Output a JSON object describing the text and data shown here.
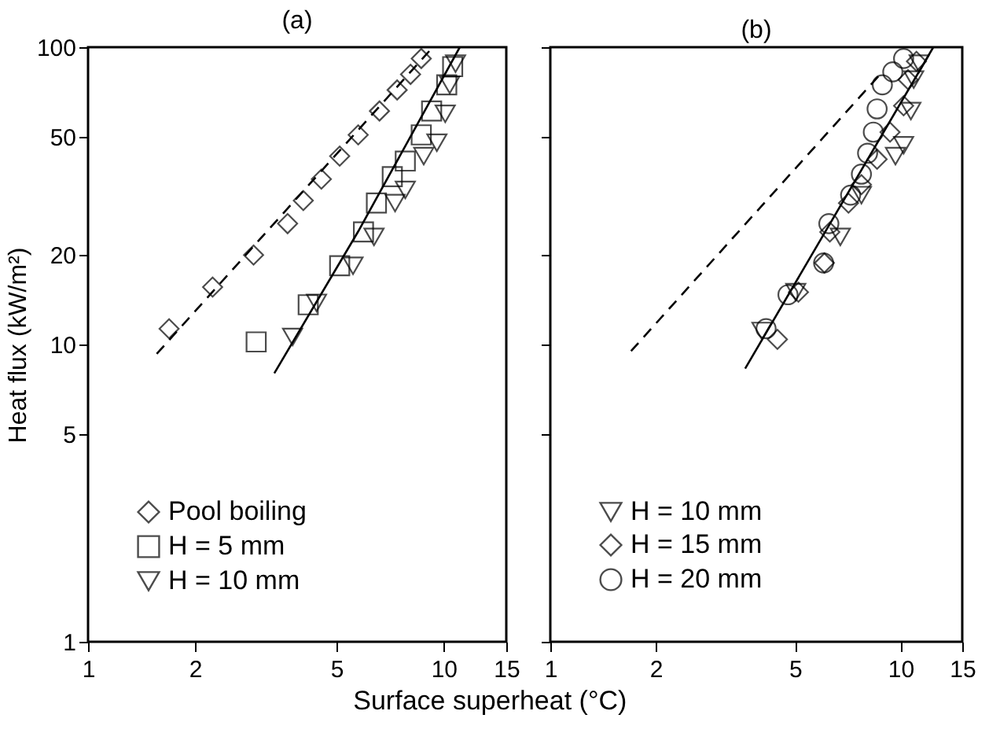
{
  "chart_data": [
    {
      "type": "scatter",
      "title": "(a)",
      "xlabel": "Surface superheat (°C)",
      "ylabel": "Heat flux (kW/m²)",
      "log": "xy",
      "grid": false,
      "legend": "bottom",
      "xlim": [
        1,
        15
      ],
      "xticks": [
        1,
        2,
        5,
        10,
        15
      ],
      "ylim": [
        1,
        100
      ],
      "yticks": [
        1,
        5,
        10,
        20,
        50,
        100
      ],
      "series": [
        {
          "name": "Pool boiling",
          "marker": "diamond",
          "color": "#000000",
          "x": [
            1.69,
            2.24,
            2.92,
            3.64,
            4.03,
            4.53,
            5.1,
            5.75,
            6.6,
            7.4,
            8.07,
            8.65
          ],
          "values": [
            11.3,
            15.6,
            20,
            25.5,
            30.5,
            36,
            43,
            50.7,
            61,
            71.8,
            81,
            91.6
          ]
        },
        {
          "name": "H = 5 mm",
          "marker": "square",
          "color": "#000000",
          "x": [
            2.97,
            4.16,
            5.1,
            5.95,
            6.47,
            7.17,
            7.8,
            8.65,
            9.25,
            10.2,
            10.6
          ],
          "values": [
            10.2,
            13.6,
            18.4,
            23.9,
            29.9,
            36.7,
            41.4,
            50.7,
            61,
            74.7,
            86
          ]
        },
        {
          "name": "H = 10 mm",
          "marker": "triangle",
          "color": "#000000",
          "x": [
            3.76,
            4.39,
            5.56,
            6.37,
            7.3,
            7.8,
            8.79,
            9.57,
            10.1,
            10.4,
            10.8
          ],
          "values": [
            10.6,
            13.8,
            18.4,
            23,
            29.9,
            33.1,
            43,
            47.7,
            59.7,
            74.7,
            88
          ]
        },
        {
          "type": "line",
          "line_style": "dashed",
          "color": "#000000",
          "x": [
            1.56,
            9.25
          ],
          "values": [
            9.3,
            99
          ]
        },
        {
          "type": "line",
          "line_style": "solid",
          "color": "#000000",
          "x": [
            3.34,
            5.75,
            11.1
          ],
          "values": [
            8.0,
            24,
            100
          ]
        }
      ]
    },
    {
      "type": "scatter",
      "title": "(b)",
      "log": "xy",
      "grid": false,
      "legend": "bottom",
      "tick_labels": "x",
      "xlim": [
        1,
        15
      ],
      "xticks": [
        1,
        2,
        5,
        10,
        15
      ],
      "ylim": [
        1,
        100
      ],
      "yticks": [
        1,
        5,
        10,
        20,
        50,
        100
      ],
      "series": [
        {
          "name": "H = 10 mm",
          "marker": "triangle",
          "color": "#000000",
          "x": [
            4.02,
            5.02,
            6.73,
            7.73,
            9.67,
            10.2,
            10.7,
            10.9,
            11.3
          ],
          "values": [
            11.1,
            15,
            23,
            31.8,
            43,
            46.8,
            61,
            77.8,
            88
          ]
        },
        {
          "name": "H = 15 mm",
          "marker": "diamond",
          "color": "#000000",
          "x": [
            4.45,
            5.11,
            6.06,
            6.28,
            7.1,
            7.73,
            8.57,
            9.33,
            10.2,
            10.5,
            11.1
          ],
          "values": [
            10.4,
            15,
            18.8,
            23.9,
            29.9,
            34.5,
            42,
            51.8,
            63.5,
            77.8,
            89.6
          ]
        },
        {
          "name": "H = 20 mm",
          "marker": "circle",
          "color": "#000000",
          "x": [
            4.13,
            4.77,
            6.03,
            6.24,
            7.2,
            7.73,
            8.05,
            8.36,
            8.57,
            8.87,
            9.5,
            10.2
          ],
          "values": [
            11.3,
            14.7,
            18.8,
            25.5,
            31.8,
            37.4,
            44,
            51.8,
            62,
            74.7,
            82.6,
            91.6
          ]
        },
        {
          "type": "line",
          "line_style": "dashed",
          "color": "#000000",
          "x": [
            1.7,
            8.87
          ],
          "values": [
            9.5,
            82.6
          ]
        },
        {
          "type": "line",
          "line_style": "solid",
          "color": "#000000",
          "x": [
            3.6,
            12.4
          ],
          "values": [
            8.3,
            100
          ]
        }
      ]
    }
  ]
}
